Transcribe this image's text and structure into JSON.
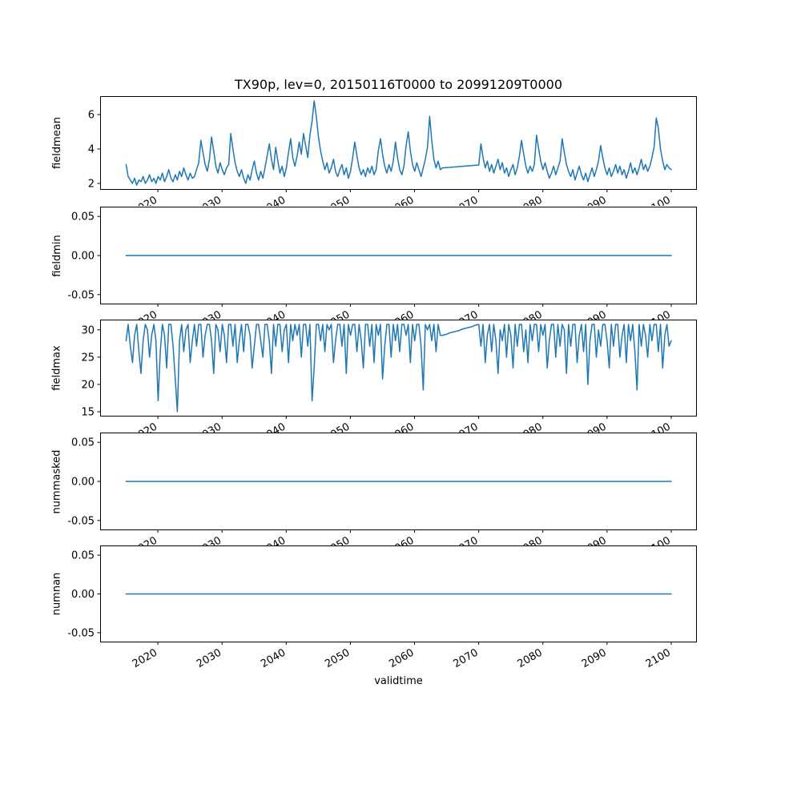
{
  "chart_data": {
    "type": "line",
    "title": "TX90p, lev=0, 20150116T0000 to 20991209T0000",
    "xlabel": "validtime",
    "line_color": "#1f77b4",
    "frame_color": "#000000",
    "xlim": [
      2011.0,
      2104.0
    ],
    "xtick_values": [
      2020,
      2030,
      2040,
      2050,
      2060,
      2070,
      2080,
      2090,
      2100
    ],
    "xtick_labels": [
      "2020",
      "2030",
      "2040",
      "2050",
      "2060",
      "2070",
      "2080",
      "2090",
      "2100"
    ],
    "subplots": [
      {
        "name": "fieldmean",
        "ylabel": "fieldmean",
        "ylim": [
          1.65,
          7.05
        ],
        "ytick_values": [
          2,
          4,
          6
        ],
        "ytick_labels": [
          "2",
          "4",
          "6"
        ],
        "x_start": 2015.04,
        "x_end": 2100,
        "y": [
          3.1,
          2.4,
          2.2,
          2.0,
          2.3,
          1.9,
          2.2,
          2.1,
          2.4,
          2.0,
          2.2,
          2.5,
          2.1,
          2.3,
          2.0,
          2.4,
          2.2,
          2.6,
          2.1,
          2.4,
          2.8,
          2.3,
          2.1,
          2.5,
          2.2,
          2.7,
          2.4,
          2.9,
          2.5,
          2.2,
          2.6,
          2.3,
          2.4,
          2.8,
          3.2,
          4.5,
          3.8,
          3.1,
          2.7,
          3.4,
          4.7,
          3.9,
          3.0,
          2.6,
          3.2,
          2.8,
          2.5,
          2.9,
          3.1,
          4.9,
          4.0,
          3.2,
          2.7,
          2.4,
          2.8,
          2.3,
          2.0,
          2.5,
          2.2,
          2.8,
          3.3,
          2.6,
          2.2,
          2.7,
          2.3,
          2.9,
          3.6,
          4.3,
          3.4,
          2.8,
          4.1,
          3.3,
          2.6,
          3.0,
          2.4,
          2.9,
          3.8,
          4.6,
          3.5,
          3.0,
          3.6,
          4.4,
          3.7,
          4.9,
          4.2,
          3.5,
          4.8,
          5.6,
          6.8,
          5.9,
          4.7,
          3.9,
          3.3,
          2.8,
          3.2,
          2.6,
          2.9,
          3.4,
          2.7,
          2.4,
          2.8,
          3.1,
          2.5,
          2.9,
          2.3,
          2.7,
          3.5,
          4.4,
          3.6,
          2.9,
          2.5,
          2.8,
          2.4,
          2.9,
          2.6,
          3.0,
          2.5,
          2.8,
          3.9,
          4.6,
          3.7,
          3.0,
          2.6,
          3.1,
          2.7,
          3.3,
          4.4,
          3.5,
          2.8,
          2.5,
          3.0,
          4.2,
          5.0,
          3.9,
          3.1,
          2.7,
          3.2,
          2.8,
          2.4,
          2.9,
          3.4,
          4.1,
          5.9,
          4.5,
          3.4,
          2.9,
          3.3,
          2.8,
          2.9,
          2.91,
          2.92,
          2.93,
          2.94,
          2.95,
          2.96,
          2.97,
          2.98,
          2.99,
          3.0,
          3.01,
          3.02,
          3.03,
          3.04,
          3.05,
          3.06,
          3.07,
          4.3,
          3.5,
          2.9,
          3.3,
          2.7,
          3.1,
          2.6,
          3.0,
          3.4,
          2.8,
          3.2,
          2.6,
          2.9,
          2.4,
          2.8,
          3.1,
          2.5,
          2.9,
          3.6,
          4.5,
          3.7,
          3.0,
          2.6,
          3.0,
          2.7,
          3.1,
          4.8,
          4.0,
          3.3,
          2.8,
          3.2,
          2.7,
          2.3,
          2.6,
          3.0,
          2.5,
          2.9,
          3.3,
          4.6,
          3.8,
          3.1,
          2.7,
          2.4,
          2.8,
          2.2,
          2.6,
          3.0,
          2.5,
          2.2,
          2.6,
          2.1,
          2.5,
          2.9,
          2.4,
          2.8,
          3.3,
          4.2,
          3.5,
          2.9,
          2.5,
          2.9,
          2.4,
          2.7,
          3.1,
          2.6,
          3.0,
          2.5,
          2.8,
          2.3,
          2.7,
          3.2,
          2.6,
          2.9,
          2.5,
          2.9,
          3.4,
          2.8,
          3.1,
          2.7,
          3.0,
          3.5,
          4.1,
          5.8,
          5.2,
          4.0,
          3.3,
          2.8,
          3.1,
          2.9,
          2.8
        ]
      },
      {
        "name": "fieldmin",
        "ylabel": "fieldmin",
        "ylim": [
          -0.062,
          0.062
        ],
        "ytick_values": [
          -0.05,
          0.0,
          0.05
        ],
        "ytick_labels": [
          "-0.05",
          "0.00",
          "0.05"
        ],
        "x_start": 2015.04,
        "x_end": 2100,
        "y": [
          0,
          0
        ]
      },
      {
        "name": "fieldmax",
        "ylabel": "fieldmax",
        "ylim": [
          14.2,
          31.8
        ],
        "ytick_values": [
          15,
          20,
          25,
          30
        ],
        "ytick_labels": [
          "15",
          "20",
          "25",
          "30"
        ],
        "x_start": 2015.04,
        "x_end": 2100,
        "y": [
          28,
          31,
          27,
          24,
          29,
          31,
          26,
          22,
          28,
          31,
          30,
          25,
          29,
          31,
          28,
          17,
          26,
          31,
          29,
          23,
          31,
          31,
          27,
          21,
          15,
          28,
          31,
          26,
          30,
          31,
          24,
          28,
          31,
          27,
          31,
          31,
          25,
          29,
          31,
          31,
          28,
          22,
          31,
          30,
          26,
          31,
          29,
          24,
          31,
          31,
          27,
          31,
          24,
          28,
          31,
          26,
          31,
          31,
          29,
          23,
          27,
          31,
          31,
          28,
          25,
          31,
          31,
          28,
          22,
          31,
          27,
          31,
          31,
          26,
          30,
          31,
          24,
          31,
          28,
          31,
          29,
          31,
          25,
          31,
          31,
          27,
          31,
          17,
          23,
          31,
          31,
          28,
          31,
          26,
          31,
          30,
          31,
          24,
          28,
          31,
          31,
          27,
          31,
          22,
          31,
          29,
          31,
          31,
          26,
          31,
          28,
          23,
          31,
          31,
          27,
          31,
          24,
          31,
          29,
          31,
          21,
          27,
          31,
          31,
          25,
          31,
          28,
          31,
          26,
          31,
          31,
          29,
          31,
          24,
          31,
          28,
          31,
          31,
          27,
          19,
          31,
          30,
          31,
          28,
          31,
          26,
          31,
          29,
          29.0,
          29.1,
          29.2,
          29.4,
          29.5,
          29.6,
          29.7,
          29.8,
          29.9,
          30.1,
          30.2,
          30.3,
          30.4,
          30.5,
          30.6,
          30.8,
          30.9,
          31.0,
          27,
          31,
          24,
          29,
          31,
          26,
          31,
          28,
          22,
          30,
          28,
          31,
          25,
          31,
          29,
          23,
          31,
          27,
          31,
          31,
          26,
          30,
          24,
          31,
          28,
          31,
          31,
          26,
          31,
          29,
          31,
          23,
          28,
          31,
          31,
          25,
          31,
          27,
          31,
          30,
          22,
          31,
          27,
          31,
          31,
          24,
          29,
          31,
          26,
          31,
          20,
          28,
          31,
          31,
          25,
          30,
          27,
          31,
          31,
          28,
          23,
          31,
          27,
          31,
          31,
          25,
          29,
          31,
          24,
          31,
          28,
          31,
          26,
          19,
          31,
          27,
          31,
          29,
          25,
          31,
          28,
          31,
          31,
          26,
          31,
          23,
          29,
          31,
          27,
          28
        ]
      },
      {
        "name": "nummasked",
        "ylabel": "nummasked",
        "ylim": [
          -0.062,
          0.062
        ],
        "ytick_values": [
          -0.05,
          0.0,
          0.05
        ],
        "ytick_labels": [
          "-0.05",
          "0.00",
          "0.05"
        ],
        "x_start": 2015.04,
        "x_end": 2100,
        "y": [
          0,
          0
        ]
      },
      {
        "name": "numnan",
        "ylabel": "numnan",
        "ylim": [
          -0.062,
          0.062
        ],
        "ytick_values": [
          -0.05,
          0.0,
          0.05
        ],
        "ytick_labels": [
          "-0.05",
          "0.00",
          "0.05"
        ],
        "x_start": 2015.04,
        "x_end": 2100,
        "y": [
          0,
          0
        ]
      }
    ]
  }
}
